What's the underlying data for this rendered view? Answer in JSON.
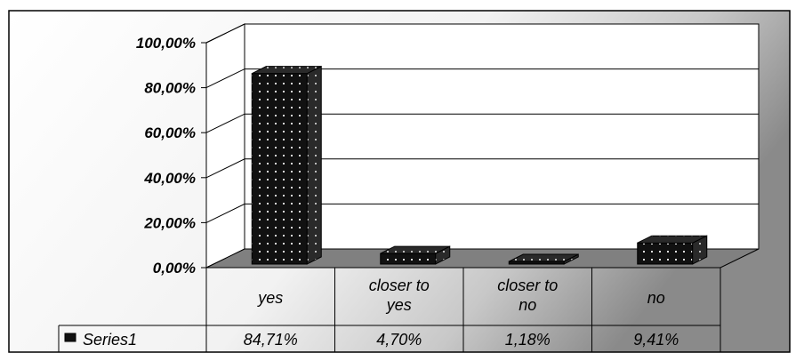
{
  "chart_data": {
    "type": "bar",
    "categories": [
      "yes",
      "closer to yes",
      "closer to no",
      "no"
    ],
    "series": [
      {
        "name": "Series1",
        "values": [
          84.71,
          4.7,
          1.18,
          9.41
        ]
      }
    ],
    "value_labels": [
      "84,71%",
      "4,70%",
      "1,18%",
      "9,41%"
    ],
    "y_ticks": [
      "0,00%",
      "20,00%",
      "40,00%",
      "60,00%",
      "80,00%",
      "100,00%"
    ],
    "ylim": [
      0,
      100
    ],
    "grid": true,
    "legend": "data-table",
    "colors": {
      "bar": "#111111",
      "bar_dots": "#dddddd",
      "floor": "#808080"
    }
  }
}
